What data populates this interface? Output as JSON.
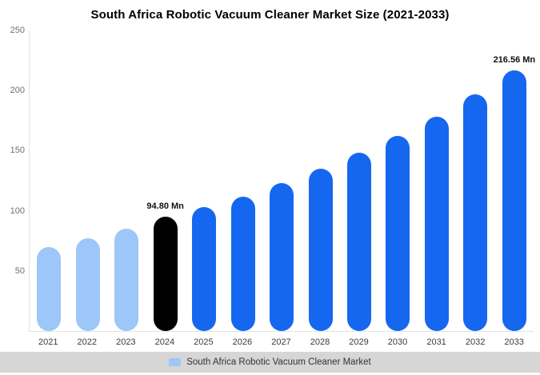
{
  "chart_data": {
    "type": "bar",
    "title": "South Africa Robotic Vacuum Cleaner Market Size (2021-2033)",
    "categories": [
      "2021",
      "2022",
      "2023",
      "2024",
      "2025",
      "2026",
      "2027",
      "2028",
      "2029",
      "2030",
      "2031",
      "2032",
      "2033"
    ],
    "values": [
      70,
      77,
      85,
      94.8,
      103,
      112,
      123,
      135,
      148.5,
      162,
      178.5,
      196.5,
      216.56
    ],
    "unit": "Mn",
    "data_labels": {
      "2024": "94.80 Mn",
      "2033": "216.56 Mn"
    },
    "ylim": [
      0,
      250
    ],
    "yticks": [
      250,
      200,
      150,
      100,
      50
    ],
    "grid": false,
    "legend": "South Africa Robotic Vacuum Cleaner Market",
    "legend_position": "bottom",
    "colors": {
      "past": "#9CC7F8",
      "highlight": "#000000",
      "default": "#1667F0",
      "legend_swatch": "#9CC7F8",
      "legend_band": "#d6d6d6"
    },
    "bar_color_keys": [
      "past",
      "past",
      "past",
      "highlight",
      "default",
      "default",
      "default",
      "default",
      "default",
      "default",
      "default",
      "default",
      "default"
    ]
  }
}
